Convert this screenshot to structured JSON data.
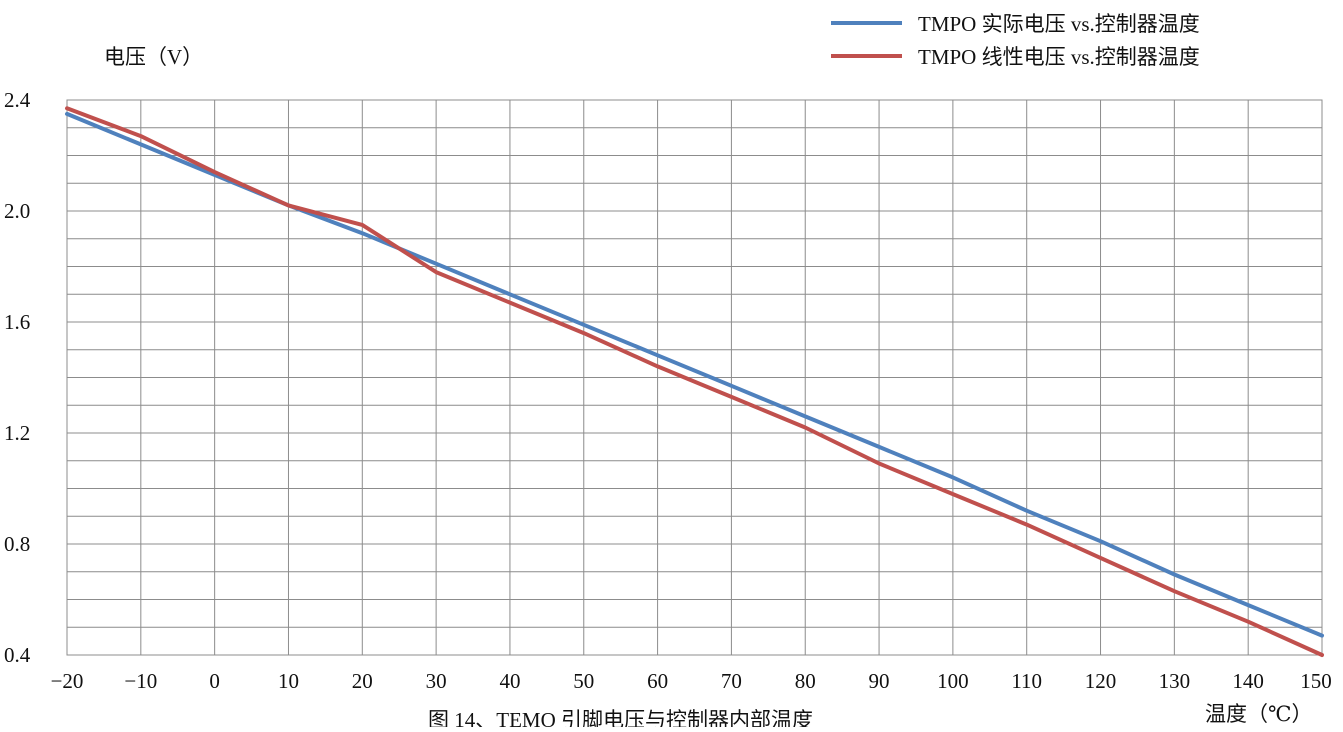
{
  "chart_data": {
    "type": "line",
    "title": "",
    "caption": "图 14、TEMO 引脚电压与控制器内部温度",
    "xlabel": "温度（℃）",
    "ylabel": "电压（V）",
    "xlim": [
      -20,
      150
    ],
    "ylim": [
      0.4,
      2.4
    ],
    "x_ticks": [
      -20,
      -10,
      0,
      10,
      20,
      30,
      40,
      50,
      60,
      70,
      80,
      90,
      100,
      110,
      120,
      130,
      140,
      150
    ],
    "x_tick_labels": [
      "−20",
      "−10",
      "0",
      "10",
      "20",
      "30",
      "40",
      "50",
      "60",
      "70",
      "80",
      "90",
      "100",
      "110",
      "120",
      "130",
      "140",
      "150"
    ],
    "y_ticks": [
      0.4,
      0.8,
      1.2,
      1.6,
      2.0,
      2.4
    ],
    "y_tick_labels": [
      "0.4",
      "0.8",
      "1.2",
      "1.6",
      "2.0",
      "2.4"
    ],
    "grid": true,
    "grid_minor_y_step": 0.1,
    "legend_position": "top-right",
    "series": [
      {
        "name": "TMPO 实际电压 vs.控制器温度",
        "color": "#4f81bd",
        "x": [
          -20,
          -10,
          0,
          10,
          20,
          30,
          40,
          50,
          60,
          70,
          80,
          90,
          100,
          110,
          120,
          130,
          140,
          150
        ],
        "y": [
          2.35,
          2.24,
          2.13,
          2.02,
          1.92,
          1.81,
          1.7,
          1.59,
          1.48,
          1.37,
          1.26,
          1.15,
          1.04,
          0.92,
          0.81,
          0.69,
          0.58,
          0.47
        ]
      },
      {
        "name": "TMPO 线性电压 vs.控制器温度",
        "color": "#c0504d",
        "x": [
          -20,
          -10,
          0,
          10,
          20,
          30,
          40,
          50,
          60,
          70,
          80,
          90,
          100,
          110,
          120,
          130,
          140,
          150
        ],
        "y": [
          2.37,
          2.27,
          2.14,
          2.02,
          1.95,
          1.78,
          1.67,
          1.56,
          1.44,
          1.33,
          1.22,
          1.09,
          0.98,
          0.87,
          0.75,
          0.63,
          0.52,
          0.4
        ]
      }
    ]
  }
}
